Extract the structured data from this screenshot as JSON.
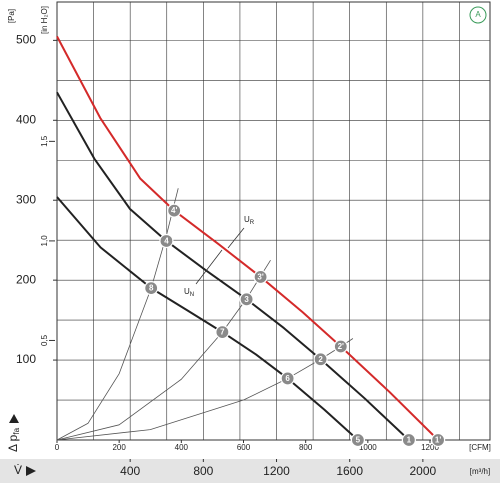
{
  "chart_data": {
    "type": "line",
    "badge": "A",
    "ylabel": "[Pa]",
    "y2label": "[in H₂O]",
    "xlabel": "[CFM]",
    "x2label": "[m³/h]",
    "y_symbol": "Δ p",
    "y_symbol_sub": "fa",
    "x_symbol": "V̇",
    "xlim": [
      0,
      1393
    ],
    "xticks": [
      0,
      200,
      400,
      600,
      800,
      1000,
      1200
    ],
    "x2lim": [
      0,
      2367
    ],
    "x2ticks": [
      400,
      800,
      1200,
      1600,
      2000
    ],
    "x2minor": [
      200,
      400,
      600,
      800,
      1000,
      1200,
      1400,
      1600,
      1800,
      2000,
      2200
    ],
    "ylim": [
      0,
      548
    ],
    "yticks": [
      100,
      200,
      300,
      400,
      500
    ],
    "yminor": [
      50,
      100,
      150,
      200,
      250,
      300,
      350,
      400,
      450,
      500
    ],
    "y2lim": [
      0,
      2.2
    ],
    "y2ticks": [
      {
        "value": 0.5,
        "label": "0,5"
      },
      {
        "value": 1.0,
        "label": "1,0"
      },
      {
        "value": 1.5,
        "label": "1,5"
      }
    ],
    "grid": true,
    "series": [
      {
        "color": "#d42a2a",
        "width": 2,
        "x": [
          0,
          139,
          268,
          377,
          520,
          655,
          790,
          913,
          1070,
          1226
        ],
        "values": [
          505,
          403,
          327,
          287,
          245,
          204,
          160,
          117,
          60,
          0
        ],
        "point_labels": [
          null,
          null,
          null,
          "4'",
          null,
          "3'",
          null,
          "2'",
          null,
          "1'"
        ]
      },
      {
        "color": "#222222",
        "width": 2,
        "x": [
          0,
          120,
          235,
          352,
          480,
          610,
          730,
          848,
          990,
          1132
        ],
        "values": [
          435,
          352,
          289,
          249,
          212,
          176,
          140,
          101,
          52,
          0
        ],
        "point_labels": [
          null,
          null,
          null,
          "4",
          null,
          "3",
          null,
          "2",
          null,
          "1"
        ]
      },
      {
        "color": "#222222",
        "width": 2,
        "x": [
          0,
          140,
          303,
          420,
          532,
          640,
          742,
          860,
          968
        ],
        "values": [
          304,
          241,
          190,
          162,
          135,
          107,
          77,
          38,
          0
        ],
        "point_labels": [
          null,
          null,
          "8",
          null,
          "7",
          null,
          "6",
          null,
          "5"
        ]
      },
      {
        "color": "#555555",
        "width": 0.8,
        "x": [
          0,
          100,
          200,
          303,
          352,
          390
        ],
        "values": [
          0,
          21,
          83,
          190,
          256,
          315
        ]
      },
      {
        "color": "#555555",
        "width": 0.8,
        "x": [
          0,
          200,
          400,
          532,
          610,
          687
        ],
        "values": [
          0,
          19,
          76,
          135,
          177,
          225
        ]
      },
      {
        "color": "#555555",
        "width": 0.8,
        "x": [
          0,
          300,
          600,
          742,
          848,
          913,
          952
        ],
        "values": [
          0,
          13,
          50,
          77,
          101,
          117,
          127
        ]
      }
    ],
    "annotations": [
      {
        "text": "U",
        "sub": "R"
      },
      {
        "text": "U",
        "sub": "N"
      }
    ]
  }
}
